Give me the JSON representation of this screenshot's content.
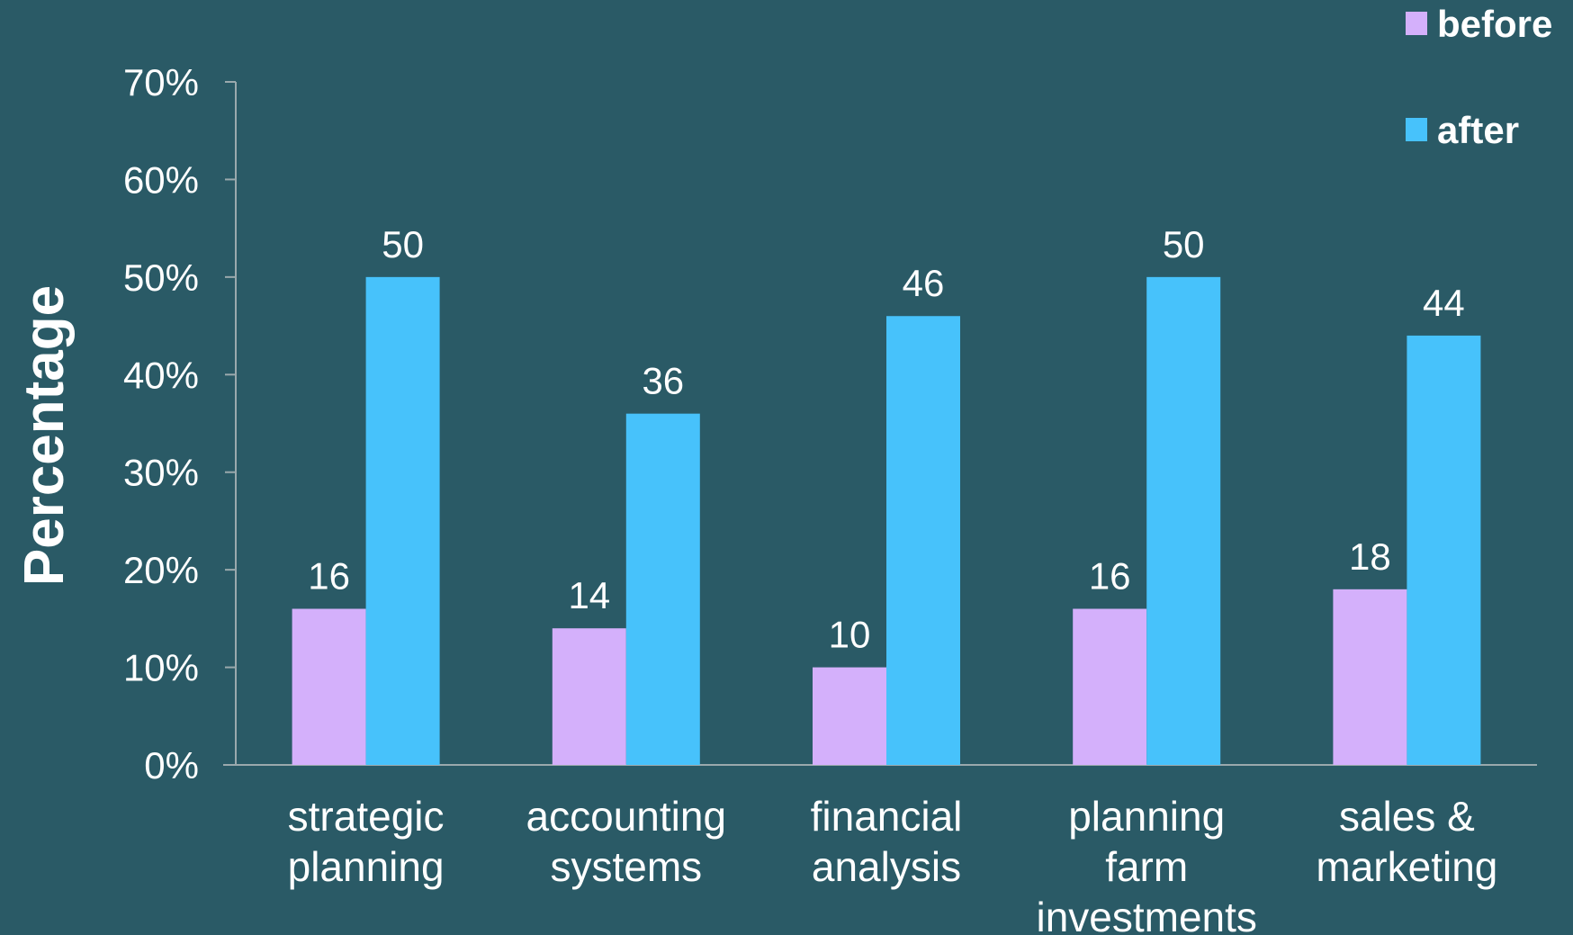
{
  "colors": {
    "background": "#2a5a66",
    "before": "#d4b0fb",
    "after": "#47c2fb",
    "axis": "#9aa9ad",
    "text": "#ffffff"
  },
  "chart_data": {
    "type": "bar",
    "title": "",
    "ylabel": "Percentage",
    "xlabel": "",
    "categories": [
      [
        "strategic",
        "planning"
      ],
      [
        "accounting",
        "systems"
      ],
      [
        "financial",
        "analysis"
      ],
      [
        "planning",
        "farm",
        "investments"
      ],
      [
        "sales &",
        "marketing"
      ]
    ],
    "series": [
      {
        "name": "before",
        "values": [
          16,
          14,
          10,
          16,
          18
        ]
      },
      {
        "name": "after",
        "values": [
          50,
          36,
          46,
          50,
          44
        ]
      }
    ],
    "ylim": [
      0,
      70
    ],
    "yticks": [
      "0%",
      "10%",
      "20%",
      "30%",
      "40%",
      "50%",
      "60%",
      "70%"
    ],
    "grid": false,
    "legend_position": "top-right"
  }
}
